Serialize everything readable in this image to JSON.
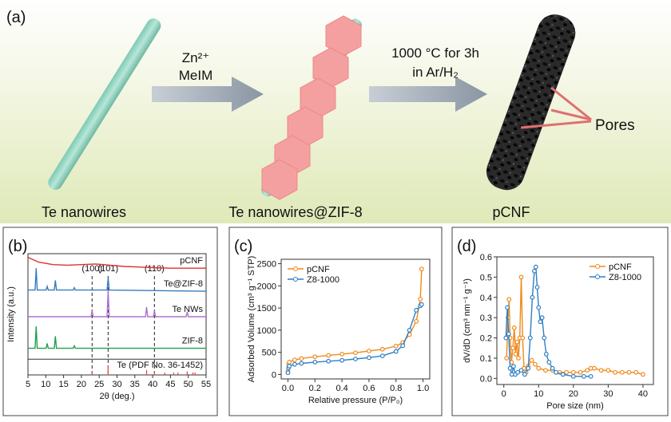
{
  "panel_a": {
    "label": "(a)",
    "step1": [
      "Zn²⁺",
      "MeIM"
    ],
    "step2": [
      "1000 °C for 3h",
      "in Ar/H₂"
    ],
    "pores": "Pores",
    "captions": [
      "Te nanowires",
      "Te nanowires@ZIF-8",
      "pCNF"
    ]
  },
  "chart_data": [
    {
      "type": "line",
      "label": "(b)",
      "xlabel": "2θ (deg.)",
      "ylabel": "Intensity (a.u.)",
      "xlim": [
        5,
        55
      ],
      "xticks": [
        5,
        10,
        15,
        20,
        25,
        30,
        35,
        40,
        45,
        50,
        55
      ],
      "ylim": [
        0,
        100
      ],
      "series": [
        {
          "name": "pCNF",
          "color": "#e03030",
          "x": [
            5,
            8,
            12,
            16,
            20,
            24,
            28,
            32,
            36,
            40,
            45,
            50,
            55
          ],
          "values": [
            97,
            93,
            91,
            90.5,
            91,
            91.5,
            90.5,
            89.5,
            89,
            88.5,
            88,
            88,
            88
          ]
        },
        {
          "name": "Te@ZIF-8",
          "color": "#3a7bbf",
          "x": [
            5,
            7,
            7.3,
            7.6,
            10.1,
            10.4,
            10.7,
            12.4,
            12.7,
            13,
            17.7,
            18,
            18.3,
            27.2,
            27.5,
            27.8,
            55
          ],
          "values": [
            70,
            70,
            88,
            70,
            70,
            73,
            70,
            70,
            78,
            70,
            70,
            72,
            70,
            70,
            80,
            70,
            69
          ]
        },
        {
          "name": "Te NWs",
          "color": "#b070d0",
          "x": [
            5,
            22.7,
            23,
            23.3,
            27.2,
            27.5,
            27.8,
            38,
            38.3,
            38.6,
            40.2,
            40.5,
            40.8,
            49.4,
            49.7,
            50,
            55
          ],
          "values": [
            48,
            48,
            53,
            48,
            48,
            70,
            48,
            48,
            56,
            48,
            48,
            53,
            48,
            48,
            52,
            48,
            48
          ]
        },
        {
          "name": "ZIF-8",
          "color": "#22a050",
          "x": [
            5,
            7,
            7.3,
            7.6,
            10.1,
            10.4,
            10.7,
            12.4,
            12.7,
            13,
            17.7,
            18,
            18.3,
            55
          ],
          "values": [
            22,
            22,
            40,
            22,
            22,
            26,
            22,
            22,
            32,
            22,
            22,
            24,
            22,
            22
          ]
        }
      ],
      "reference": {
        "name": "Te (PDF No. 36-1452)",
        "color": "#e05050",
        "x": [
          23,
          27.5,
          38.3,
          40.5,
          43.4,
          45.9,
          47.1,
          49.7,
          51.3,
          51.9
        ],
        "values": [
          3,
          8,
          4,
          3,
          2,
          2,
          2,
          3,
          2,
          2
        ]
      },
      "guides": [
        {
          "label": "(100)",
          "x": 23
        },
        {
          "label": "(101)",
          "x": 27.5
        },
        {
          "label": "(110)",
          "x": 40.5
        }
      ]
    },
    {
      "type": "line",
      "label": "(c)",
      "xlabel": "Relative pressure (P/P₀)",
      "ylabel": "Adsorbed Volume (cm³ g⁻¹ STP)",
      "xlim": [
        -0.05,
        1.05
      ],
      "xticks": [
        {
          "value": 0,
          "label": "0.0"
        },
        {
          "value": 0.2,
          "label": "0.2"
        },
        {
          "value": 0.4,
          "label": "0.4"
        },
        {
          "value": 0.6,
          "label": "0.6"
        },
        {
          "value": 0.8,
          "label": "0.8"
        },
        {
          "value": 1,
          "label": "1.0"
        }
      ],
      "ylim": [
        -100,
        2600
      ],
      "yticks": [
        0,
        500,
        1000,
        1500,
        2000,
        2500
      ],
      "legend": "top-left",
      "series": [
        {
          "name": "pCNF",
          "color": "#f08a1c",
          "x": [
            0,
            0.005,
            0.01,
            0.05,
            0.1,
            0.2,
            0.3,
            0.4,
            0.5,
            0.6,
            0.7,
            0.8,
            0.85,
            0.9,
            0.95,
            0.98,
            0.99
          ],
          "values": [
            80,
            230,
            280,
            330,
            360,
            400,
            430,
            460,
            490,
            530,
            570,
            640,
            720,
            900,
            1200,
            1700,
            2380
          ]
        },
        {
          "name": "Z8-1000",
          "color": "#2e7fc4",
          "x": [
            0,
            0.005,
            0.01,
            0.05,
            0.1,
            0.2,
            0.3,
            0.4,
            0.5,
            0.6,
            0.7,
            0.8,
            0.85,
            0.9,
            0.95,
            0.98,
            0.99
          ],
          "values": [
            40,
            150,
            190,
            230,
            250,
            280,
            300,
            320,
            350,
            380,
            420,
            520,
            650,
            1000,
            1450,
            1550,
            1580
          ]
        }
      ]
    },
    {
      "type": "line",
      "label": "(d)",
      "xlabel": "Pore size (nm)",
      "ylabel": "dV/dD (cm³ nm⁻¹ g⁻¹)",
      "xlim": [
        -2,
        43
      ],
      "xticks": [
        0,
        10,
        20,
        30,
        40
      ],
      "ylim": [
        -0.03,
        0.6
      ],
      "yticks": [
        {
          "value": 0,
          "label": "0.0"
        },
        {
          "value": 0.1,
          "label": "0.1"
        },
        {
          "value": 0.2,
          "label": "0.2"
        },
        {
          "value": 0.3,
          "label": "0.3"
        },
        {
          "value": 0.4,
          "label": "0.4"
        },
        {
          "value": 0.5,
          "label": "0.5"
        },
        {
          "value": 0.6,
          "label": "0.6"
        }
      ],
      "legend": "top-right",
      "series": [
        {
          "name": "pCNF",
          "color": "#f08a1c",
          "x": [
            0.8,
            1.2,
            1.5,
            1.8,
            2.2,
            2.6,
            3,
            3.4,
            3.8,
            4.2,
            4.6,
            5,
            5.4,
            5.8,
            6.4,
            7,
            8,
            9,
            10,
            12,
            14,
            16,
            18,
            20,
            22,
            24,
            25,
            26,
            28,
            30,
            32,
            34,
            36,
            38,
            40
          ],
          "values": [
            0.1,
            0.3,
            0.39,
            0.2,
            0.08,
            0.15,
            0.25,
            0.12,
            0.18,
            0.1,
            0.2,
            0.5,
            0.2,
            0.05,
            0.03,
            0.06,
            0.09,
            0.07,
            0.05,
            0.04,
            0.04,
            0.03,
            0.03,
            0.03,
            0.03,
            0.04,
            0.05,
            0.05,
            0.04,
            0.04,
            0.03,
            0.03,
            0.03,
            0.03,
            0.02
          ]
        },
        {
          "name": "Z8-1000",
          "color": "#2e7fc4",
          "x": [
            0.6,
            1,
            1.4,
            1.8,
            2.3,
            2.8,
            3.3,
            4,
            5,
            6,
            7,
            7.6,
            8.2,
            8.8,
            9.2,
            9.6,
            10,
            10.5,
            11,
            11.6,
            12.2,
            13,
            14,
            15,
            17,
            20,
            23,
            25
          ],
          "values": [
            0.2,
            0.35,
            0.22,
            0.05,
            0.02,
            0.06,
            0.02,
            0.03,
            0.04,
            0.02,
            0.05,
            0.2,
            0.4,
            0.53,
            0.55,
            0.45,
            0.35,
            0.28,
            0.3,
            0.2,
            0.12,
            0.08,
            0.05,
            0.03,
            0.02,
            0.01,
            0.01,
            0.01
          ]
        }
      ]
    }
  ]
}
